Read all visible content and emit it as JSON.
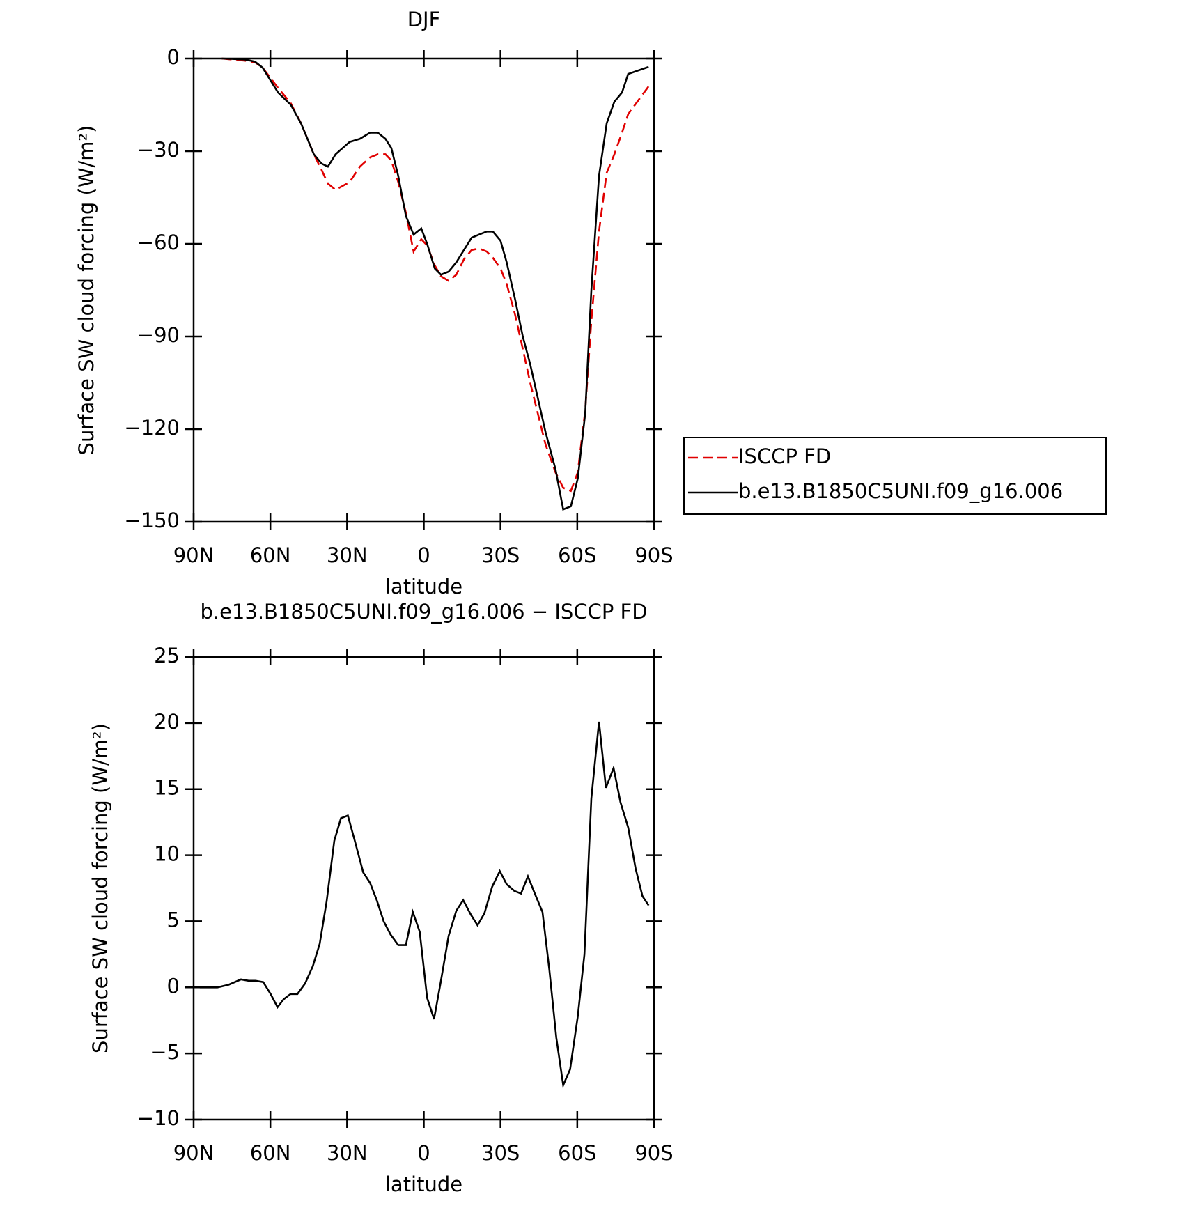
{
  "chart_data": [
    {
      "type": "line",
      "title": "DJF",
      "xlabel": "latitude",
      "ylabel": "Surface SW cloud forcing (W/m²)",
      "x": [
        79,
        70,
        66,
        63,
        57,
        52,
        48,
        43,
        40,
        37.5,
        34.5,
        29,
        25,
        21,
        18,
        15,
        12.7,
        10,
        7,
        4,
        1,
        -1.3,
        -4.3,
        -6.7,
        -9.7,
        -12.7,
        -15.7,
        -18.7,
        -21.6,
        -24.6,
        -27,
        -30,
        -32.4,
        -35.7,
        -38.7,
        -41.6,
        -44.6,
        -47.6,
        -51.5,
        -54.5,
        -57.5,
        -60.2,
        -63.1,
        -65.5,
        -68.5,
        -71.5,
        -74.5,
        -77.5,
        -79.9,
        -87.9
      ],
      "series": [
        {
          "name": "ISCCP FD",
          "color": "#e00000",
          "dash": true,
          "values": [
            0,
            -0.7,
            -1.2,
            -3,
            -9.5,
            -14.5,
            -21,
            -31,
            -36,
            -40.5,
            -42.5,
            -40,
            -35,
            -32,
            -31,
            -31,
            -33,
            -40,
            -50,
            -62.5,
            -58.5,
            -60.5,
            -67,
            -70.5,
            -72,
            -70,
            -65,
            -62,
            -61.5,
            -62.5,
            -64.5,
            -68,
            -73,
            -83,
            -94,
            -105,
            -115,
            -125,
            -134,
            -139,
            -140,
            -134,
            -114,
            -85,
            -56,
            -37,
            -31,
            -24,
            -18,
            -9
          ]
        },
        {
          "name": "b.e13.B1850C5UNI.f09_g16.006",
          "color": "#000000",
          "dash": false,
          "values": [
            0,
            -0.3,
            -1,
            -3,
            -11,
            -15,
            -21,
            -31,
            -34,
            -35,
            -31,
            -27,
            -26,
            -24,
            -24,
            -26,
            -29,
            -38,
            -51,
            -57,
            -55,
            -60,
            -68,
            -70,
            -69,
            -66,
            -62,
            -58,
            -57,
            -56,
            -56,
            -59,
            -66,
            -78,
            -90,
            -99,
            -110,
            -121,
            -133,
            -146,
            -145,
            -136,
            -115,
            -75,
            -38,
            -21,
            -14,
            -11,
            -5,
            -2.7
          ]
        }
      ],
      "legend": "outside right",
      "xlim": [
        90,
        -90
      ],
      "xticks": [
        {
          "value": 90,
          "label": "90N"
        },
        {
          "value": 60,
          "label": "60N"
        },
        {
          "value": 30,
          "label": "30N"
        },
        0,
        {
          "value": -30,
          "label": "30S"
        },
        {
          "value": -60,
          "label": "60S"
        },
        {
          "value": -90,
          "label": "90S"
        }
      ],
      "ylim": [
        -150,
        0
      ],
      "yticks": [
        0,
        {
          "value": -30,
          "label": "−30"
        },
        {
          "value": -60,
          "label": "−60"
        },
        {
          "value": -90,
          "label": "−90"
        },
        {
          "value": -120,
          "label": "−120"
        },
        {
          "value": -150,
          "label": "−150"
        }
      ]
    },
    {
      "type": "line",
      "title": "b.e13.B1850C5UNI.f09_g16.006 − ISCCP FD",
      "xlabel": "latitude",
      "ylabel": "Surface SW cloud forcing (W/m²)",
      "x": [
        87.6,
        80.7,
        76.3,
        71.5,
        68.5,
        65.8,
        62.8,
        59.9,
        57.2,
        54.8,
        52.1,
        49.4,
        46.4,
        43.4,
        40.7,
        38,
        35,
        32.4,
        29.7,
        27,
        23.7,
        21,
        18.4,
        15.7,
        13,
        10,
        7,
        4.3,
        1.6,
        -1.3,
        -4,
        -6.7,
        -9.7,
        -12.7,
        -15.4,
        -18.4,
        -21,
        -23.7,
        -26.7,
        -29.7,
        -32.4,
        -35.4,
        -38,
        -40.7,
        -43.4,
        -46.4,
        -49.1,
        -51.8,
        -54.5,
        -57.2,
        -60.2,
        -62.8,
        -65.5,
        -68.5,
        -71.2,
        -74.2,
        -76.9,
        -79.9,
        -82.8,
        -85.5,
        -87.9
      ],
      "series": [
        {
          "color": "#000000",
          "dash": false,
          "values": [
            0,
            0,
            0.2,
            0.6,
            0.5,
            0.5,
            0.4,
            -0.5,
            -1.5,
            -0.9,
            -0.5,
            -0.5,
            0.3,
            1.6,
            3.3,
            6.5,
            11.1,
            12.8,
            13,
            11.1,
            8.7,
            7.9,
            6.6,
            5,
            4,
            3.2,
            3.2,
            5.7,
            4.2,
            -0.8,
            -2.4,
            0.5,
            3.9,
            5.8,
            6.6,
            5.5,
            4.7,
            5.6,
            7.6,
            8.8,
            7.8,
            7.3,
            7.1,
            8.4,
            7.1,
            5.7,
            1.3,
            -3.8,
            -7.4,
            -6.2,
            -2.2,
            2.5,
            14.3,
            20.1,
            15.1,
            16.6,
            14,
            12.1,
            9,
            6.9,
            6.2
          ]
        }
      ],
      "xlim": [
        90,
        -90
      ],
      "xticks": [
        {
          "value": 90,
          "label": "90N"
        },
        {
          "value": 60,
          "label": "60N"
        },
        {
          "value": 30,
          "label": "30N"
        },
        0,
        {
          "value": -30,
          "label": "30S"
        },
        {
          "value": -60,
          "label": "60S"
        },
        {
          "value": -90,
          "label": "90S"
        }
      ],
      "ylim": [
        -10,
        25
      ],
      "yticks": [
        25,
        20,
        15,
        10,
        5,
        0,
        {
          "value": -5,
          "label": "−5"
        },
        {
          "value": -10,
          "label": "−10"
        }
      ]
    }
  ]
}
